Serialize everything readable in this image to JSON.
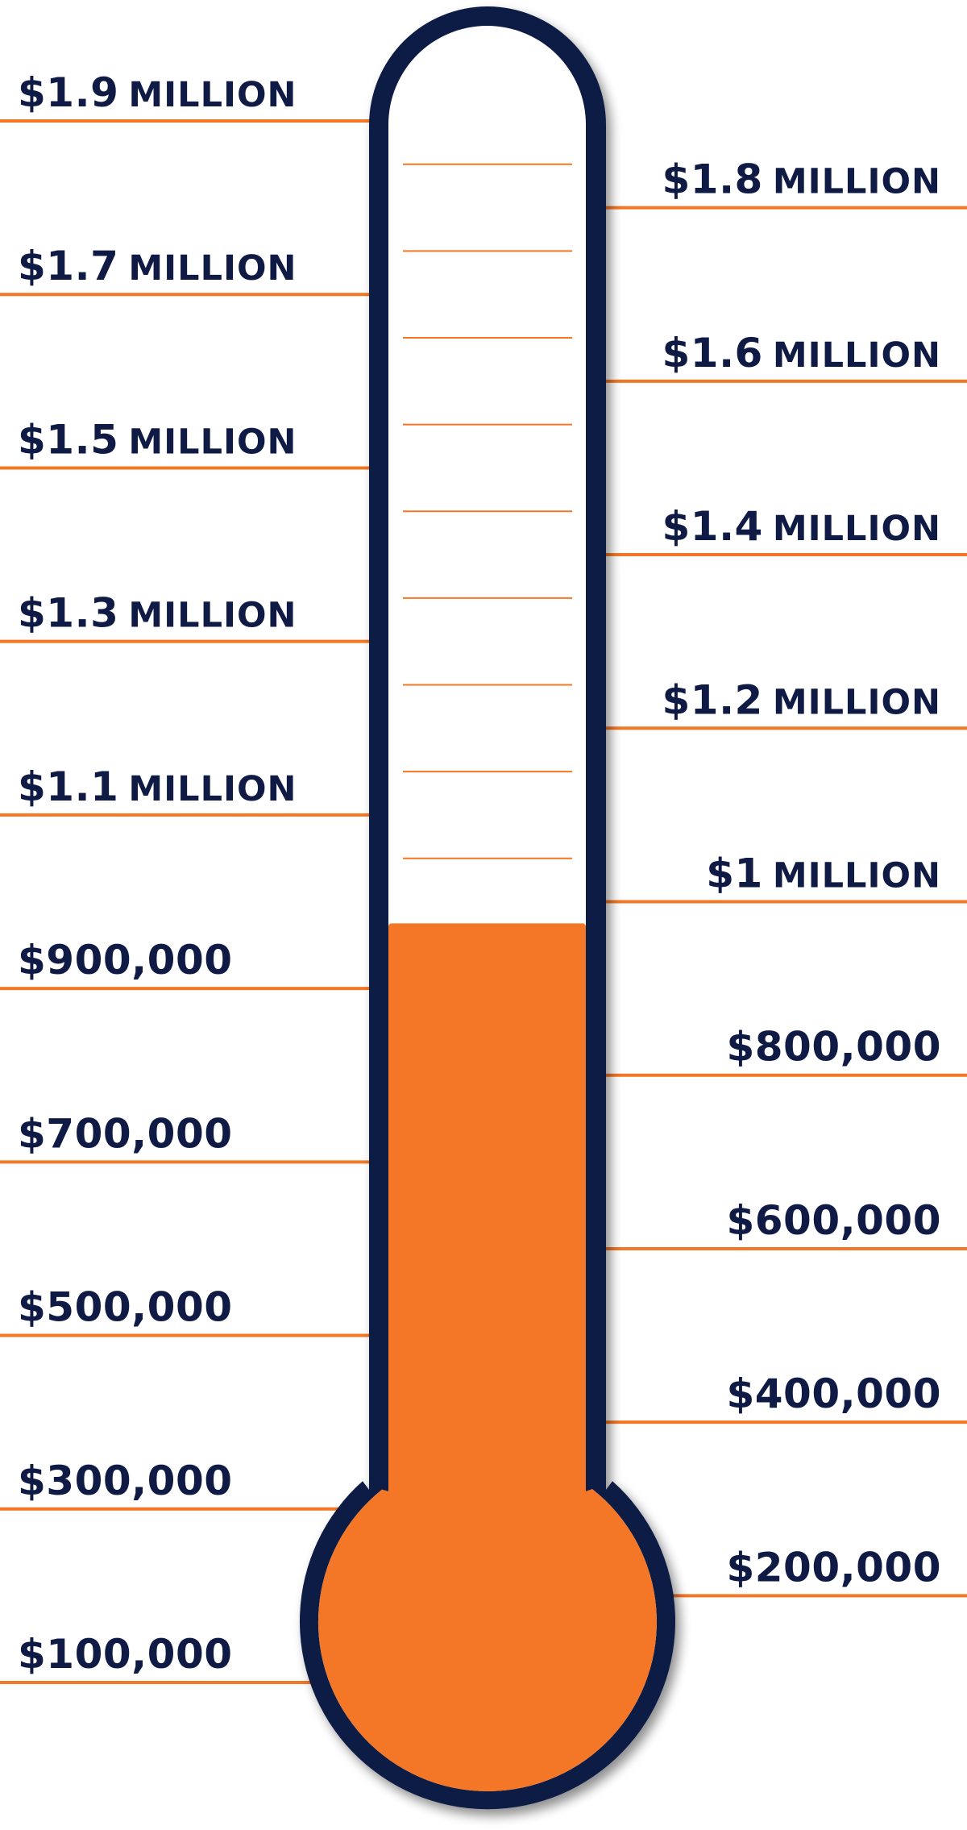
{
  "chart_data": {
    "type": "thermometer",
    "title": "",
    "goal": 1900000,
    "current_value": 975000,
    "ylim": [
      0,
      1900000
    ],
    "ticks": [
      {
        "value": 1900000,
        "amount": "$1.9",
        "unit": "MILLION",
        "side": "left"
      },
      {
        "value": 1800000,
        "amount": "$1.8",
        "unit": "MILLION",
        "side": "right"
      },
      {
        "value": 1700000,
        "amount": "$1.7",
        "unit": "MILLION",
        "side": "left"
      },
      {
        "value": 1600000,
        "amount": "$1.6",
        "unit": "MILLION",
        "side": "right"
      },
      {
        "value": 1500000,
        "amount": "$1.5",
        "unit": "MILLION",
        "side": "left"
      },
      {
        "value": 1400000,
        "amount": "$1.4",
        "unit": "MILLION",
        "side": "right"
      },
      {
        "value": 1300000,
        "amount": "$1.3",
        "unit": "MILLION",
        "side": "left"
      },
      {
        "value": 1200000,
        "amount": "$1.2",
        "unit": "MILLION",
        "side": "right"
      },
      {
        "value": 1100000,
        "amount": "$1.1",
        "unit": "MILLION",
        "side": "left"
      },
      {
        "value": 1000000,
        "amount": "$1",
        "unit": "MILLION",
        "side": "right"
      },
      {
        "value": 900000,
        "amount": "$900,000",
        "unit": "",
        "side": "left"
      },
      {
        "value": 800000,
        "amount": "$800,000",
        "unit": "",
        "side": "right"
      },
      {
        "value": 700000,
        "amount": "$700,000",
        "unit": "",
        "side": "left"
      },
      {
        "value": 600000,
        "amount": "$600,000",
        "unit": "",
        "side": "right"
      },
      {
        "value": 500000,
        "amount": "$500,000",
        "unit": "",
        "side": "left"
      },
      {
        "value": 400000,
        "amount": "$400,000",
        "unit": "",
        "side": "right"
      },
      {
        "value": 300000,
        "amount": "$300,000",
        "unit": "",
        "side": "left"
      },
      {
        "value": 200000,
        "amount": "$200,000",
        "unit": "",
        "side": "right"
      },
      {
        "value": 100000,
        "amount": "$100,000",
        "unit": "",
        "side": "left"
      }
    ],
    "colors": {
      "fill": "#f37725",
      "outline": "#0f1b45",
      "tick_line": "#f37725",
      "label_text": "#0f1b45",
      "background": "#ffffff"
    }
  }
}
